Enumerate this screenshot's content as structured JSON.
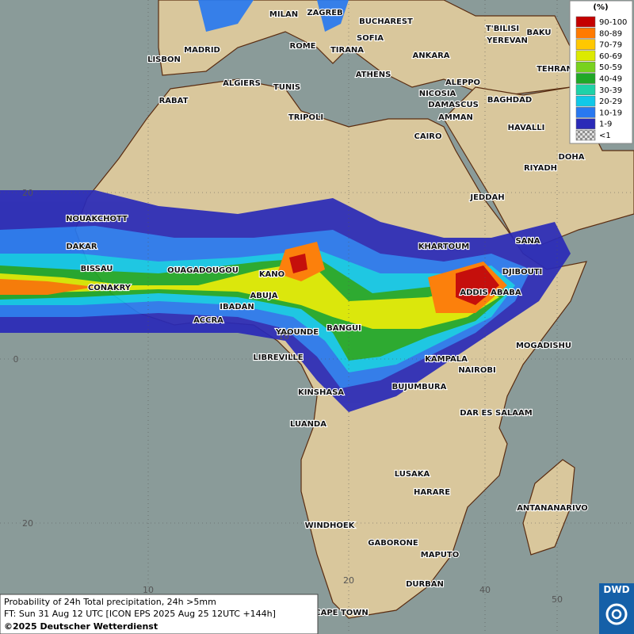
{
  "cities": [
    "MILAN",
    "ZAGREB",
    "BUCHAREST",
    "BAKU",
    "T'BILISI",
    "YEREVAN",
    "MADRID",
    "ROME",
    "SOFIA",
    "TIRANA",
    "ANKARA",
    "TEHRAN",
    "LISBON",
    "ATHENS",
    "ALGIERS",
    "TUNIS",
    "ALEPPO",
    "RABAT",
    "NICOSIA",
    "BAGHDAD",
    "DAMASCUS",
    "TRIPOLI",
    "AMMAN",
    "HAVALLI",
    "CAIRO",
    "DOHA",
    "RIYADH",
    "JEDDAH",
    "NOUAKCHOTT",
    "SANA",
    "KHARTOUM",
    "DAKAR",
    "DJIBOUTI",
    "BISSAU",
    "OUAGADOUGOU",
    "KANO",
    "ADDIS ABABA",
    "CONAKRY",
    "ABUJA",
    "IBADAN",
    "ACCRA",
    "YAOUNDE",
    "BANGUI",
    "MOGADISHU",
    "LIBREVILLE",
    "KAMPALA",
    "NAIROBI",
    "BUJUMBURA",
    "KINSHASA",
    "DAR ES SALAAM",
    "LUANDA",
    "LUSAKA",
    "HARARE",
    "ANTANANARIVO",
    "WINDHOEK",
    "GABORONE",
    "MAPUTO",
    "DURBAN",
    "CAPE TOWN"
  ],
  "grid_labels": {
    "lat": [
      "20",
      "0",
      "20"
    ],
    "lon": [
      "10",
      "10",
      "20",
      "40",
      "50"
    ]
  },
  "legend": {
    "title": "(%)",
    "entries": [
      {
        "label": "90-100",
        "color": "#c40000"
      },
      {
        "label": "80-89",
        "color": "#ff7a00"
      },
      {
        "label": "70-79",
        "color": "#ffc800"
      },
      {
        "label": "60-69",
        "color": "#dcea00"
      },
      {
        "label": "50-59",
        "color": "#78d21e"
      },
      {
        "label": "40-49",
        "color": "#20a828"
      },
      {
        "label": "30-39",
        "color": "#1ed2a8"
      },
      {
        "label": "20-29",
        "color": "#10c8e8"
      },
      {
        "label": "10-19",
        "color": "#2878f0"
      },
      {
        "label": "1-9",
        "color": "#2a2ab8"
      },
      {
        "label": "<1",
        "color": "#b0b0b0"
      }
    ]
  },
  "caption": {
    "line1": "Probability of 24h Total precipitation, 24h >5mm",
    "line2": "FT: Sun 31 Aug 12 UTC [ICON EPS 2025 Aug 25 12UTC +144h]",
    "line3": "©2025 Deutscher Wetterdienst"
  },
  "logo": "DWD"
}
